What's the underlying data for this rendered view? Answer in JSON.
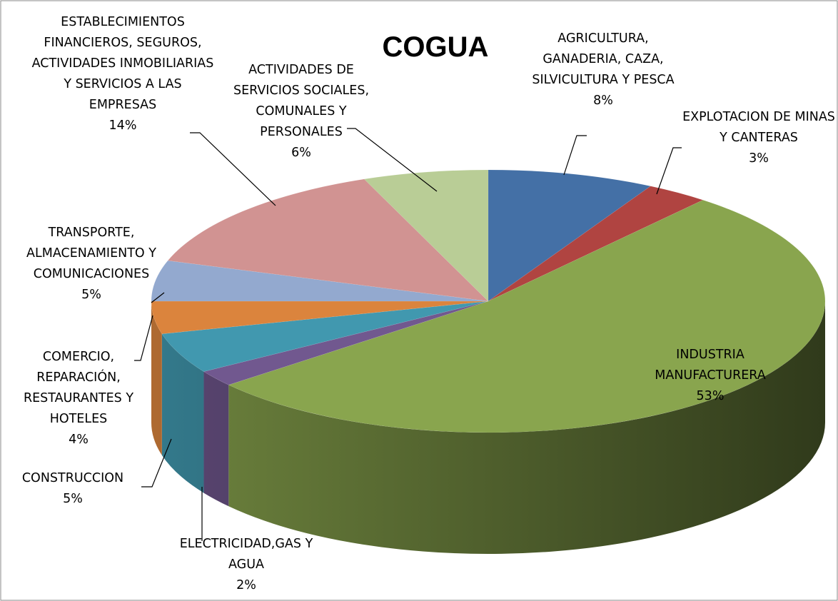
{
  "chart_data": {
    "type": "pie3d",
    "title": "COGUA",
    "categories": [
      "AGRICULTURA, GANADERIA, CAZA, SILVICULTURA Y PESCA",
      "EXPLOTACION DE MINAS Y CANTERAS",
      "INDUSTRIA MANUFACTURERA",
      "ELECTRICIDAD,GAS Y AGUA",
      "CONSTRUCCION",
      "COMERCIO, REPARACIÓN, RESTAURANTES Y HOTELES",
      "TRANSPORTE, ALMACENAMIENTO Y COMUNICACIONES",
      "ESTABLECIMIENTOS FINANCIEROS, SEGUROS, ACTIVIDADES INMOBILIARIAS Y SERVICIOS A LAS EMPRESAS",
      "ACTIVIDADES DE SERVICIOS SOCIALES, COMUNALES Y PERSONALES"
    ],
    "values": [
      8,
      3,
      53,
      2,
      5,
      4,
      5,
      14,
      6
    ],
    "value_labels": [
      "8%",
      "3%",
      "53%",
      "2%",
      "5%",
      "4%",
      "5%",
      "14%",
      "6%"
    ],
    "colors": [
      "#4470a6",
      "#b04441",
      "#89a54e",
      "#71588f",
      "#4198af",
      "#db843d",
      "#93a9cf",
      "#d19392",
      "#b9cd96"
    ]
  }
}
